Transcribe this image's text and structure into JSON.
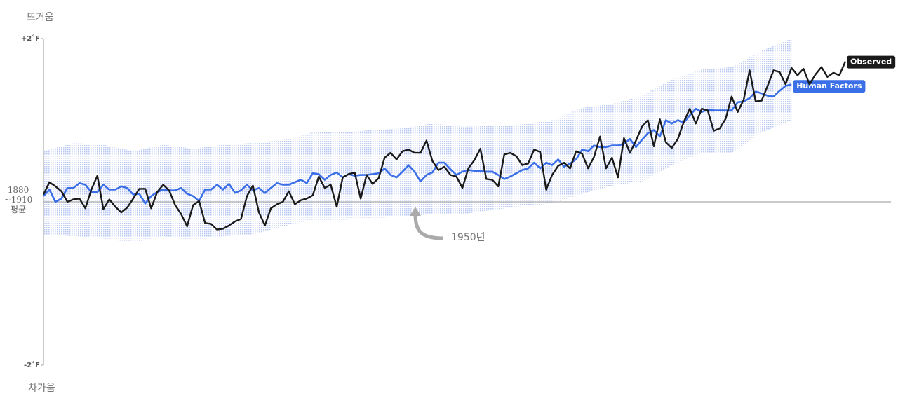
{
  "chart_data": {
    "type": "line",
    "y_top_label": "뜨거움",
    "y_bottom_label": "차가움",
    "annotation": "1950년",
    "xlim": [
      1880,
      2014
    ],
    "ylim": [
      -2,
      2
    ],
    "yticks": [
      {
        "value": 2,
        "label": "+2˚F"
      },
      {
        "value": 0,
        "label": "1880\n~1910\n평균"
      },
      {
        "value": -2,
        "label": "-2˚F"
      }
    ],
    "x": [
      1880,
      1881,
      1882,
      1883,
      1884,
      1885,
      1886,
      1887,
      1888,
      1889,
      1890,
      1891,
      1892,
      1893,
      1894,
      1895,
      1896,
      1897,
      1898,
      1899,
      1900,
      1901,
      1902,
      1903,
      1904,
      1905,
      1906,
      1907,
      1908,
      1909,
      1910,
      1911,
      1912,
      1913,
      1914,
      1915,
      1916,
      1917,
      1918,
      1919,
      1920,
      1921,
      1922,
      1923,
      1924,
      1925,
      1926,
      1927,
      1928,
      1929,
      1930,
      1931,
      1932,
      1933,
      1934,
      1935,
      1936,
      1937,
      1938,
      1939,
      1940,
      1941,
      1942,
      1943,
      1944,
      1945,
      1946,
      1947,
      1948,
      1949,
      1950,
      1951,
      1952,
      1953,
      1954,
      1955,
      1956,
      1957,
      1958,
      1959,
      1960,
      1961,
      1962,
      1963,
      1964,
      1965,
      1966,
      1967,
      1968,
      1969,
      1970,
      1971,
      1972,
      1973,
      1974,
      1975,
      1976,
      1977,
      1978,
      1979,
      1980,
      1981,
      1982,
      1983,
      1984,
      1985,
      1986,
      1987,
      1988,
      1989,
      1990,
      1991,
      1992,
      1993,
      1994,
      1995,
      1996,
      1997,
      1998,
      1999,
      2000,
      2001,
      2002,
      2003,
      2004,
      2005,
      2006,
      2007,
      2008,
      2009,
      2010,
      2011,
      2012,
      2013,
      2014
    ],
    "band": {
      "color": "#9db4ea",
      "x": [
        1880,
        1885,
        1890,
        1895,
        1900,
        1905,
        1910,
        1915,
        1920,
        1925,
        1930,
        1935,
        1940,
        1945,
        1950,
        1955,
        1960,
        1965,
        1970,
        1975,
        1980,
        1985,
        1990,
        1995,
        2000,
        2005
      ],
      "upper": [
        0.62,
        0.72,
        0.7,
        0.62,
        0.7,
        0.65,
        0.7,
        0.72,
        0.76,
        0.85,
        0.85,
        0.88,
        0.9,
        0.96,
        0.92,
        0.93,
        0.95,
        1.0,
        1.15,
        1.2,
        1.3,
        1.5,
        1.62,
        1.65,
        1.85,
        2.0
      ],
      "lower": [
        -0.4,
        -0.42,
        -0.45,
        -0.5,
        -0.42,
        -0.47,
        -0.42,
        -0.4,
        -0.3,
        -0.22,
        -0.22,
        -0.2,
        -0.18,
        -0.15,
        -0.15,
        -0.1,
        -0.05,
        -0.02,
        0.1,
        0.2,
        0.25,
        0.45,
        0.6,
        0.6,
        0.85,
        1.0
      ]
    },
    "series": [
      {
        "name": "Observed",
        "color": "#1a1a1a",
        "values": [
          0.09,
          0.24,
          0.19,
          0.13,
          0.0,
          0.03,
          0.04,
          -0.08,
          0.15,
          0.32,
          -0.09,
          0.03,
          -0.06,
          -0.13,
          -0.07,
          0.04,
          0.16,
          0.16,
          -0.08,
          0.12,
          0.21,
          0.14,
          -0.04,
          -0.15,
          -0.3,
          -0.04,
          0.01,
          -0.26,
          -0.27,
          -0.34,
          -0.33,
          -0.29,
          -0.24,
          -0.21,
          0.07,
          0.2,
          -0.13,
          -0.29,
          -0.08,
          -0.03,
          0.0,
          0.13,
          -0.03,
          0.02,
          0.04,
          0.08,
          0.31,
          0.17,
          0.21,
          -0.06,
          0.3,
          0.34,
          0.36,
          0.04,
          0.33,
          0.22,
          0.29,
          0.54,
          0.6,
          0.52,
          0.62,
          0.64,
          0.6,
          0.6,
          0.75,
          0.5,
          0.39,
          0.43,
          0.33,
          0.31,
          0.17,
          0.41,
          0.51,
          0.65,
          0.28,
          0.27,
          0.19,
          0.58,
          0.6,
          0.56,
          0.45,
          0.47,
          0.64,
          0.61,
          0.15,
          0.33,
          0.44,
          0.48,
          0.41,
          0.62,
          0.59,
          0.41,
          0.55,
          0.8,
          0.41,
          0.54,
          0.3,
          0.78,
          0.6,
          0.75,
          0.92,
          1.0,
          0.68,
          1.01,
          0.73,
          0.66,
          0.77,
          0.98,
          1.14,
          0.96,
          1.14,
          1.12,
          0.87,
          0.9,
          1.02,
          1.29,
          1.1,
          1.25,
          1.61,
          1.23,
          1.24,
          1.42,
          1.61,
          1.59,
          1.44,
          1.64,
          1.55,
          1.63,
          1.44,
          1.56,
          1.65,
          1.53,
          1.58,
          1.55,
          1.72
        ]
      },
      {
        "name": "Human Factors",
        "color": "#3b6fe8",
        "values": [
          0.07,
          0.15,
          0.0,
          0.04,
          0.17,
          0.17,
          0.23,
          0.21,
          0.12,
          0.12,
          0.21,
          0.15,
          0.15,
          0.19,
          0.17,
          0.09,
          0.1,
          -0.02,
          0.07,
          0.12,
          0.15,
          0.14,
          0.14,
          0.17,
          0.1,
          0.07,
          0.01,
          0.15,
          0.15,
          0.21,
          0.15,
          0.22,
          0.11,
          0.14,
          0.21,
          0.14,
          0.17,
          0.11,
          0.17,
          0.23,
          0.21,
          0.21,
          0.24,
          0.27,
          0.23,
          0.35,
          0.34,
          0.27,
          0.33,
          0.36,
          0.3,
          0.34,
          0.32,
          0.33,
          0.33,
          0.34,
          0.35,
          0.41,
          0.33,
          0.3,
          0.37,
          0.45,
          0.37,
          0.25,
          0.33,
          0.36,
          0.48,
          0.48,
          0.4,
          0.33,
          0.37,
          0.39,
          0.38,
          0.38,
          0.37,
          0.37,
          0.33,
          0.28,
          0.31,
          0.35,
          0.39,
          0.41,
          0.48,
          0.41,
          0.48,
          0.45,
          0.52,
          0.43,
          0.47,
          0.52,
          0.64,
          0.62,
          0.69,
          0.67,
          0.67,
          0.69,
          0.69,
          0.71,
          0.77,
          0.67,
          0.76,
          0.84,
          0.88,
          0.8,
          1.0,
          0.96,
          1.0,
          0.97,
          1.06,
          1.14,
          1.1,
          1.13,
          1.12,
          1.12,
          1.12,
          1.12,
          1.22,
          1.23,
          1.27,
          1.35,
          1.33,
          1.3,
          1.29,
          1.36,
          1.42,
          1.44,
          null,
          null,
          null,
          null,
          null,
          null,
          null,
          null,
          null
        ]
      }
    ]
  }
}
